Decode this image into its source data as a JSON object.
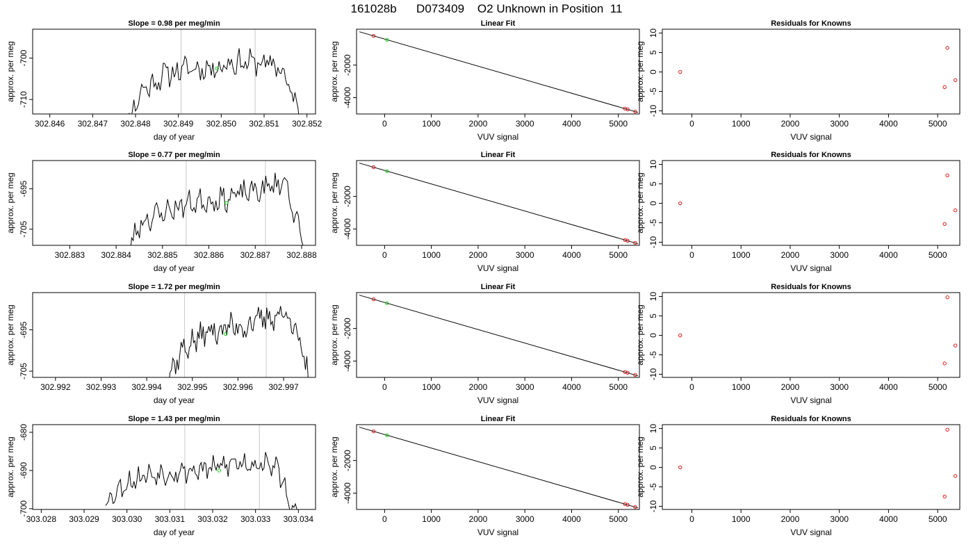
{
  "figure": {
    "title": "161028b      D073409    O2 Unknown in Position  11"
  },
  "colors": {
    "series": "#000000",
    "known_points": "#dd0000",
    "unknown_point": "#00cc00",
    "vertical_lines": "#c8c8c8",
    "frame": "#000000"
  },
  "chart_data": [
    {
      "type": "line",
      "title": "Slope =  0.98  per meg/min",
      "xlabel": "day of year",
      "ylabel": "approx. per meg",
      "xlim": [
        302.8456,
        302.8522
      ],
      "ylim": [
        -713.5,
        -693.0
      ],
      "xticks": [
        302.846,
        302.847,
        302.848,
        302.849,
        302.85,
        302.851,
        302.852
      ],
      "yticks": [
        -700,
        -710
      ],
      "vlines": [
        302.84906,
        302.85079
      ],
      "start": 302.8476,
      "end": 302.8519,
      "n": 120,
      "base": [
        -720,
        -708,
        -704,
        -702.5,
        -702.5,
        -701,
        -701,
        -702,
        -715
      ],
      "amp": 2.4,
      "seed": 11,
      "green_point": {
        "x": 302.8499,
        "y": -702.5
      }
    },
    {
      "type": "scatter",
      "title": "Linear Fit",
      "xlabel": "VUV signal",
      "ylabel": "approx. per meg",
      "xlim": [
        -600,
        5450
      ],
      "ylim": [
        -5000,
        200
      ],
      "xticks": [
        0,
        1000,
        2000,
        3000,
        4000,
        5000
      ],
      "yticks": [
        -2000,
        -4000
      ],
      "line": [
        [
          -540,
          43
        ],
        [
          5420,
          -4906
        ]
      ],
      "known_points": [
        [
          -236,
          -209
        ],
        [
          5142,
          -4670
        ],
        [
          5198,
          -4716
        ],
        [
          5360,
          -4851
        ]
      ],
      "green_point": {
        "x": 52,
        "y": -449
      }
    },
    {
      "type": "scatter",
      "title": "Residuals for Knowns",
      "xlabel": "VUV signal",
      "ylabel": "",
      "xlim": [
        -600,
        5450
      ],
      "ylim": [
        -10.8,
        11.0
      ],
      "xticks": [
        0,
        1000,
        2000,
        3000,
        4000,
        5000
      ],
      "yticks": [
        10,
        5,
        0,
        -5,
        -10
      ],
      "known_points": [
        [
          -236,
          0.0
        ],
        [
          5142,
          -3.9
        ],
        [
          5198,
          6.2
        ],
        [
          5360,
          -2.1
        ]
      ]
    },
    {
      "type": "line",
      "title": "Slope =  0.77  per meg/min",
      "xlabel": "day of year",
      "ylabel": "approx. per meg",
      "xlim": [
        302.8822,
        302.8883
      ],
      "ylim": [
        -709.0,
        -688.0
      ],
      "xticks": [
        302.883,
        302.884,
        302.885,
        302.886,
        302.887,
        302.888
      ],
      "yticks": [
        -695,
        -705
      ],
      "vlines": [
        302.88551,
        302.88722
      ],
      "start": 302.8841,
      "end": 302.8881,
      "n": 120,
      "base": [
        -714,
        -703,
        -701,
        -699,
        -698,
        -697.5,
        -696,
        -695,
        -693,
        -712
      ],
      "amp": 2.4,
      "seed": 23,
      "green_point": {
        "x": 302.88638,
        "y": -698.5
      }
    },
    {
      "type": "scatter",
      "title": "Linear Fit",
      "xlabel": "VUV signal",
      "ylabel": "approx. per meg",
      "xlim": [
        -600,
        5450
      ],
      "ylim": [
        -5000,
        200
      ],
      "xticks": [
        0,
        1000,
        2000,
        3000,
        4000,
        5000
      ],
      "yticks": [
        -2000,
        -4000
      ],
      "line": [
        [
          -540,
          43
        ],
        [
          5420,
          -4906
        ]
      ],
      "known_points": [
        [
          -236,
          -209
        ],
        [
          5142,
          -4670
        ],
        [
          5198,
          -4716
        ],
        [
          5360,
          -4851
        ]
      ],
      "green_point": {
        "x": 52,
        "y": -449
      }
    },
    {
      "type": "scatter",
      "title": "Residuals for Knowns",
      "xlabel": "VUV signal",
      "ylabel": "",
      "xlim": [
        -600,
        5450
      ],
      "ylim": [
        -10.8,
        11.0
      ],
      "xticks": [
        0,
        1000,
        2000,
        3000,
        4000,
        5000
      ],
      "yticks": [
        10,
        5,
        0,
        -5,
        -10
      ],
      "known_points": [
        [
          -236,
          0.0
        ],
        [
          5142,
          -5.3
        ],
        [
          5198,
          7.2
        ],
        [
          5360,
          -1.8
        ]
      ]
    },
    {
      "type": "line",
      "title": "Slope =  1.72  per meg/min",
      "xlabel": "day of year",
      "ylabel": "approx. per meg",
      "xlim": [
        302.9915,
        302.9977
      ],
      "ylim": [
        -706.5,
        -686.0
      ],
      "xticks": [
        302.992,
        302.993,
        302.994,
        302.995,
        302.996,
        302.997
      ],
      "yticks": [
        -695,
        -705
      ],
      "vlines": [
        302.99483,
        302.99662
      ],
      "start": 302.9943,
      "end": 302.9976,
      "n": 110,
      "base": [
        -710,
        -700,
        -696,
        -694.5,
        -694,
        -692,
        -691,
        -708
      ],
      "amp": 2.6,
      "seed": 37,
      "green_point": {
        "x": 302.99573,
        "y": -696.0
      }
    },
    {
      "type": "scatter",
      "title": "Linear Fit",
      "xlabel": "VUV signal",
      "ylabel": "approx. per meg",
      "xlim": [
        -600,
        5450
      ],
      "ylim": [
        -5000,
        200
      ],
      "xticks": [
        0,
        1000,
        2000,
        3000,
        4000,
        5000
      ],
      "yticks": [
        -2000,
        -4000
      ],
      "line": [
        [
          -540,
          43
        ],
        [
          5420,
          -4906
        ]
      ],
      "known_points": [
        [
          -236,
          -209
        ],
        [
          5142,
          -4670
        ],
        [
          5198,
          -4716
        ],
        [
          5360,
          -4851
        ]
      ],
      "green_point": {
        "x": 52,
        "y": -449
      }
    },
    {
      "type": "scatter",
      "title": "Residuals for Knowns",
      "xlabel": "VUV signal",
      "ylabel": "",
      "xlim": [
        -600,
        5450
      ],
      "ylim": [
        -10.8,
        11.0
      ],
      "xticks": [
        0,
        1000,
        2000,
        3000,
        4000,
        5000
      ],
      "yticks": [
        10,
        5,
        0,
        -5,
        -10
      ],
      "known_points": [
        [
          -236,
          0.0
        ],
        [
          5142,
          -7.2
        ],
        [
          5198,
          9.8
        ],
        [
          5360,
          -2.6
        ]
      ]
    },
    {
      "type": "line",
      "title": "Slope =  1.43  per meg/min",
      "xlabel": "day of year",
      "ylabel": "approx. per meg",
      "xlim": [
        303.0278,
        303.0344
      ],
      "ylim": [
        -700.2,
        -678.0
      ],
      "xticks": [
        303.028,
        303.029,
        303.03,
        303.031,
        303.032,
        303.033,
        303.034
      ],
      "yticks": [
        -680,
        -690,
        -700
      ],
      "vlines": [
        303.03135,
        303.03309
      ],
      "start": 303.0295,
      "end": 303.034,
      "n": 130,
      "base": [
        -698,
        -693,
        -691,
        -690.5,
        -690,
        -689.5,
        -688,
        -688,
        -689,
        -704
      ],
      "amp": 2.4,
      "seed": 53,
      "green_point": {
        "x": 303.03215,
        "y": -690.0
      }
    },
    {
      "type": "scatter",
      "title": "Linear Fit",
      "xlabel": "VUV signal",
      "ylabel": "approx. per meg",
      "xlim": [
        -600,
        5450
      ],
      "ylim": [
        -5000,
        200
      ],
      "xticks": [
        0,
        1000,
        2000,
        3000,
        4000,
        5000
      ],
      "yticks": [
        -2000,
        -4000
      ],
      "line": [
        [
          -540,
          43
        ],
        [
          5420,
          -4906
        ]
      ],
      "known_points": [
        [
          -236,
          -209
        ],
        [
          5142,
          -4670
        ],
        [
          5198,
          -4716
        ],
        [
          5360,
          -4851
        ]
      ],
      "green_point": {
        "x": 52,
        "y": -449
      }
    },
    {
      "type": "scatter",
      "title": "Residuals for Knowns",
      "xlabel": "VUV signal",
      "ylabel": "",
      "xlim": [
        -600,
        5450
      ],
      "ylim": [
        -10.8,
        11.0
      ],
      "xticks": [
        0,
        1000,
        2000,
        3000,
        4000,
        5000
      ],
      "yticks": [
        10,
        5,
        0,
        -5,
        -10
      ],
      "known_points": [
        [
          -236,
          0.0
        ],
        [
          5142,
          -7.5
        ],
        [
          5198,
          9.7
        ],
        [
          5360,
          -2.2
        ]
      ]
    }
  ]
}
